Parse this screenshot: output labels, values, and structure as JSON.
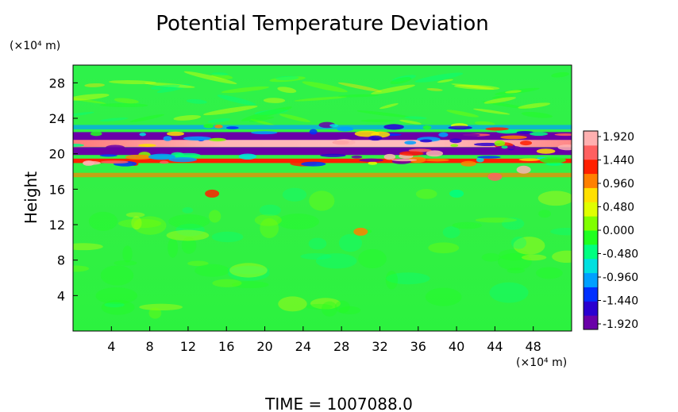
{
  "chart_data": {
    "type": "heatmap",
    "title": "Potential Temperature Deviation",
    "xlabel": "",
    "ylabel": "Height",
    "x_unit": "(×10⁴ m)",
    "y_unit": "(×10⁴ m)",
    "xlim": [
      0,
      52
    ],
    "ylim": [
      0,
      30
    ],
    "x_ticks": [
      4,
      8,
      12,
      16,
      20,
      24,
      28,
      32,
      36,
      40,
      44,
      48
    ],
    "y_ticks": [
      4,
      8,
      12,
      16,
      20,
      24,
      28
    ],
    "colorbar": {
      "labels": [
        "1.920",
        "1.440",
        "0.960",
        "0.480",
        "0.000",
        "-0.480",
        "-0.960",
        "-1.440",
        "-1.920"
      ],
      "range": [
        -1.92,
        1.92
      ],
      "colors": [
        "#6a00a8",
        "#2a00d0",
        "#0030ff",
        "#00a0ff",
        "#00e0e0",
        "#00ff80",
        "#20ff20",
        "#80ff00",
        "#e0ff00",
        "#ffe000",
        "#ff8000",
        "#ff2000",
        "#ff6060",
        "#ffb0b0"
      ]
    },
    "bands": [
      {
        "y_center": 20.3,
        "value": -1.92
      },
      {
        "y_center": 21.2,
        "value": 1.92
      },
      {
        "y_center": 22.0,
        "value": -1.8
      },
      {
        "y_center": 19.2,
        "value": 1.2
      },
      {
        "y_center": 23.0,
        "value": -0.9
      },
      {
        "y_center": 17.6,
        "value": 0.9
      }
    ],
    "background_value": 0.3,
    "grid": false,
    "legend": "right colorbar"
  },
  "footer": {
    "time_label": "TIME  =  1007088.0"
  }
}
